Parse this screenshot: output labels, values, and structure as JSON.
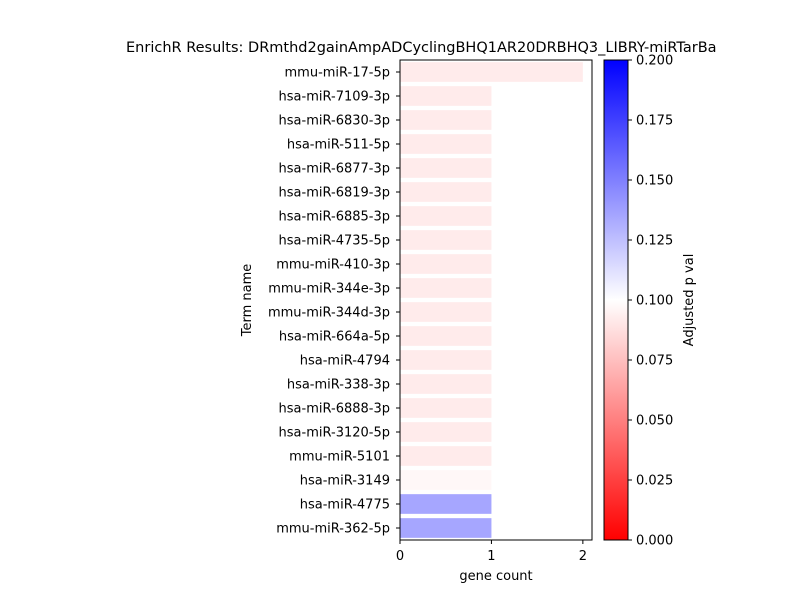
{
  "chart_data": {
    "type": "bar",
    "orientation": "horizontal",
    "title": "EnrichR Results: DRmthd2gainAmpADCyclingBHQ1AR20DRBHQ3_LIBRY-miRTarBa",
    "xlabel": "gene count",
    "ylabel": "Term name",
    "categories": [
      "mmu-miR-17-5p",
      "hsa-miR-7109-3p",
      "hsa-miR-6830-3p",
      "hsa-miR-511-5p",
      "hsa-miR-6877-3p",
      "hsa-miR-6819-3p",
      "hsa-miR-6885-3p",
      "hsa-miR-4735-5p",
      "mmu-miR-410-3p",
      "mmu-miR-344e-3p",
      "mmu-miR-344d-3p",
      "hsa-miR-664a-5p",
      "hsa-miR-4794",
      "hsa-miR-338-3p",
      "hsa-miR-6888-3p",
      "hsa-miR-3120-5p",
      "mmu-miR-5101",
      "hsa-miR-3149",
      "hsa-miR-4775",
      "mmu-miR-362-5p"
    ],
    "values": [
      2,
      1,
      1,
      1,
      1,
      1,
      1,
      1,
      1,
      1,
      1,
      1,
      1,
      1,
      1,
      1,
      1,
      1,
      1,
      1
    ],
    "adjusted_p_val": [
      0.092,
      0.092,
      0.092,
      0.092,
      0.092,
      0.092,
      0.092,
      0.092,
      0.092,
      0.092,
      0.092,
      0.092,
      0.092,
      0.092,
      0.092,
      0.092,
      0.092,
      0.097,
      0.135,
      0.135
    ],
    "xlim": [
      0,
      2.1
    ],
    "xticks": [
      "0",
      "1",
      "2"
    ],
    "colorbar": {
      "label": "Adjusted p val",
      "range": [
        0,
        0.2
      ],
      "ticks": [
        "0.000",
        "0.025",
        "0.050",
        "0.075",
        "0.100",
        "0.125",
        "0.150",
        "0.175",
        "0.200"
      ],
      "colormap": [
        "#ff0000",
        "#ffffff",
        "#0000ff"
      ]
    },
    "grid": false,
    "legend": "none"
  }
}
